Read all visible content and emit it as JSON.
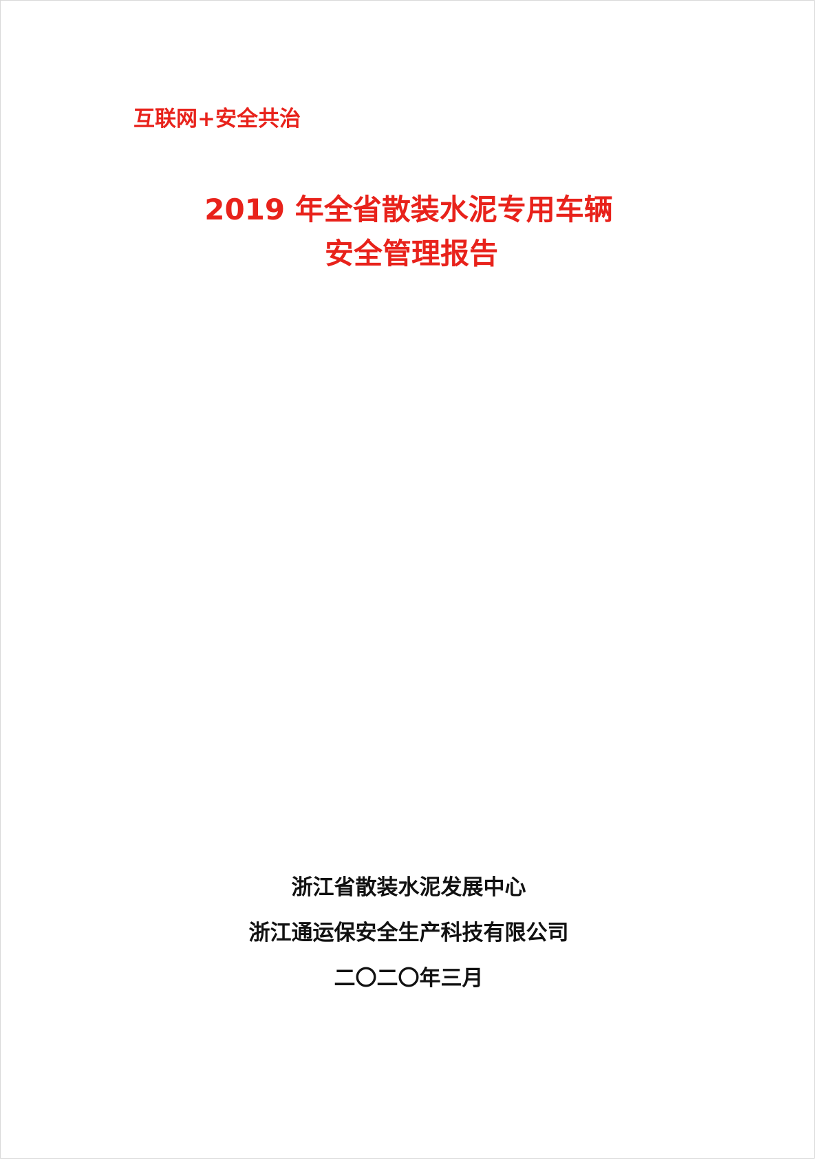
{
  "colors": {
    "accent": "#e8221b",
    "text": "#111111",
    "page_border": "#d8d8d8",
    "background": "#ffffff"
  },
  "cover": {
    "tagline": "互联网+安全共治",
    "title_line_1": "2019 年全省散装水泥专用车辆",
    "title_line_2": "安全管理报告"
  },
  "publisher": {
    "org_1": "浙江省散装水泥发展中心",
    "org_2": "浙江通运保安全生产科技有限公司",
    "date": "二〇二〇年三月"
  }
}
